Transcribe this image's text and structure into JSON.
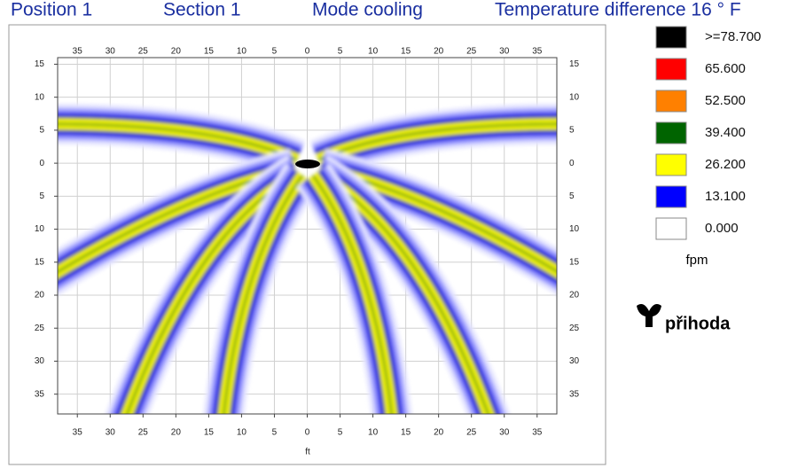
{
  "chart_data": {
    "type": "contour",
    "header": [
      "Position  1",
      "Section  1",
      "Mode cooling",
      "Temperature difference  16 ° F"
    ],
    "xlabel": "ft",
    "xlim": [
      -38,
      38
    ],
    "ylim": [
      -38,
      16
    ],
    "xticks": [
      {
        "value": -35,
        "label": "35"
      },
      {
        "value": -30,
        "label": "30"
      },
      {
        "value": -25,
        "label": "25"
      },
      {
        "value": -20,
        "label": "20"
      },
      {
        "value": -15,
        "label": "15"
      },
      {
        "value": -10,
        "label": "10"
      },
      {
        "value": -5,
        "label": "5"
      },
      0,
      5,
      10,
      15,
      20,
      25,
      30,
      35
    ],
    "yticks": [
      15,
      10,
      5,
      0,
      {
        "value": -5,
        "label": "5"
      },
      {
        "value": -10,
        "label": "10"
      },
      {
        "value": -15,
        "label": "15"
      },
      {
        "value": -20,
        "label": "20"
      },
      {
        "value": -25,
        "label": "25"
      },
      {
        "value": -30,
        "label": "30"
      },
      {
        "value": -35,
        "label": "35"
      }
    ],
    "grid": true,
    "legend": [
      {
        "label": ">=78.700",
        "color": "#000000"
      },
      {
        "label": "65.600",
        "color": "#ff0000"
      },
      {
        "label": "52.500",
        "color": "#ff8000"
      },
      {
        "label": "39.400",
        "color": "#006400"
      },
      {
        "label": "26.200",
        "color": "#ffff00"
      },
      {
        "label": "13.100",
        "color": "#0000ff"
      },
      {
        "label": "0.000",
        "color": "#ffffff"
      }
    ],
    "units": "fpm",
    "brand": "přihoda"
  }
}
